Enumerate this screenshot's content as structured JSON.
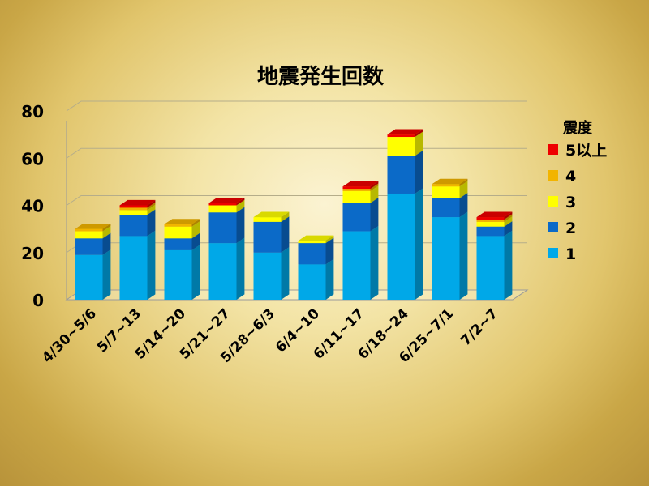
{
  "chart_data": {
    "type": "bar",
    "stacked": true,
    "title": "地震発生回数",
    "xlabel": "",
    "ylabel": "",
    "ylim": [
      0,
      80
    ],
    "yticks": [
      0,
      20,
      40,
      60,
      80
    ],
    "grid": true,
    "legend_position": "right",
    "legend_title": "震度",
    "categories": [
      "4/30~5/6",
      "5/7~13",
      "5/14~20",
      "5/21~27",
      "5/28~6/3",
      "6/4~10",
      "6/11~17",
      "6/18~24",
      "6/25~7/1",
      "7/2~7"
    ],
    "series": [
      {
        "name": "1",
        "color": "#00a8e8",
        "values": [
          19,
          27,
          21,
          24,
          20,
          15,
          29,
          45,
          35,
          27
        ]
      },
      {
        "name": "2",
        "color": "#0b6ac8",
        "values": [
          7,
          9,
          5,
          13,
          13,
          9,
          12,
          16,
          8,
          4
        ]
      },
      {
        "name": "3",
        "color": "#ffff00",
        "values": [
          3,
          2,
          5,
          3,
          2,
          1,
          5,
          8,
          5,
          2
        ]
      },
      {
        "name": "4",
        "color": "#f2b400",
        "values": [
          1,
          1,
          1,
          0,
          0,
          0,
          1,
          0,
          1,
          1
        ]
      },
      {
        "name": "5以上",
        "color": "#ee0000",
        "values": [
          0,
          1,
          0,
          1,
          0,
          0,
          1,
          1,
          0,
          1
        ]
      }
    ]
  }
}
